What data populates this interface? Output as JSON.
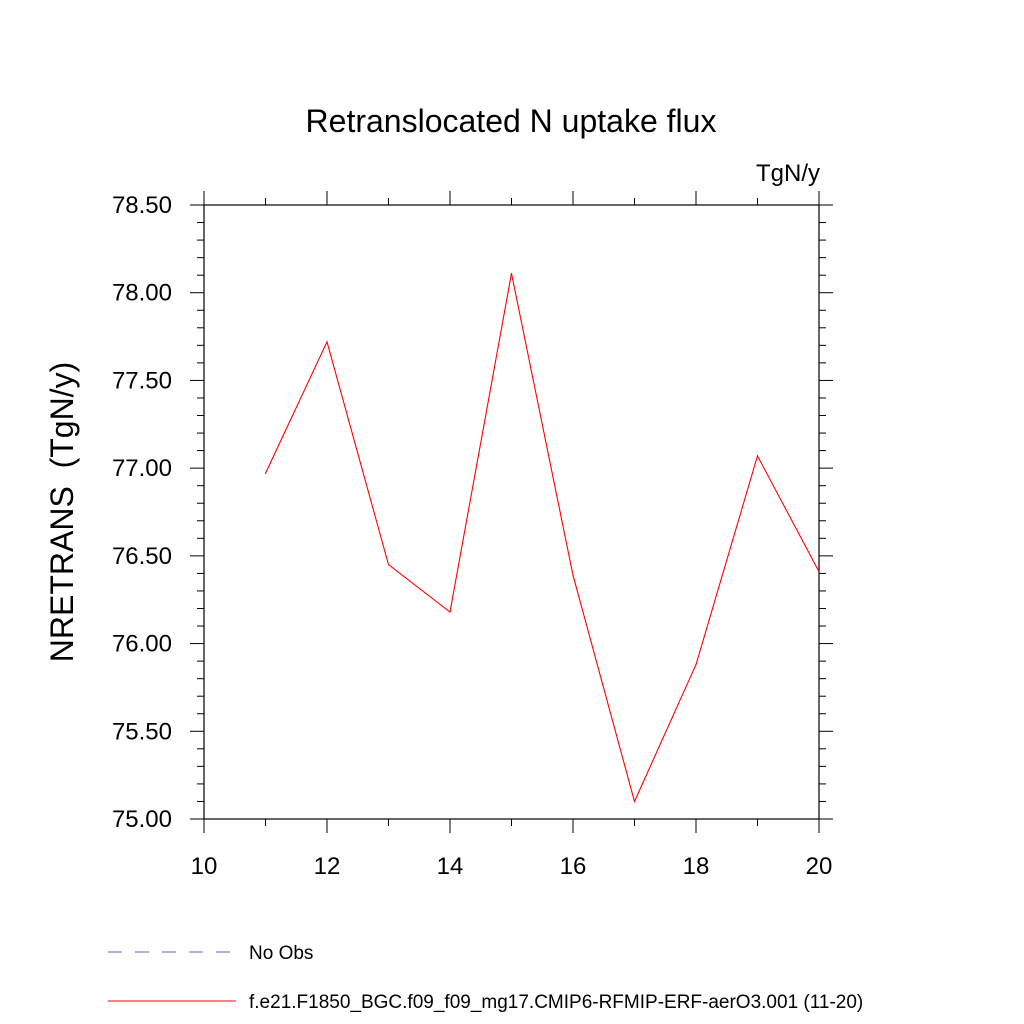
{
  "chart_data": {
    "type": "line",
    "title": "Retranslocated N uptake flux",
    "units_label": "TgN/y",
    "ylabel": "NRETRANS  (TgN/y)",
    "xlabel": "",
    "xlim": [
      10,
      20
    ],
    "ylim": [
      75.0,
      78.5
    ],
    "x_ticks": [
      10,
      12,
      14,
      16,
      18,
      20
    ],
    "x_tick_labels": [
      "10",
      "12",
      "14",
      "16",
      "18",
      "20"
    ],
    "y_ticks": [
      75.0,
      75.5,
      76.0,
      76.5,
      77.0,
      77.5,
      78.0,
      78.5
    ],
    "y_tick_labels": [
      "75.00",
      "75.50",
      "76.00",
      "76.50",
      "77.00",
      "77.50",
      "78.00",
      "78.50"
    ],
    "grid": false,
    "legend_position": "bottom",
    "series": [
      {
        "name": "f.e21.F1850_BGC.f09_f09_mg17.CMIP6-RFMIP-ERF-aerO3.001 (11-20)",
        "color": "#ff0000",
        "style": "solid",
        "x": [
          11,
          12,
          13,
          14,
          15,
          16,
          17,
          18,
          19,
          20
        ],
        "y": [
          76.97,
          77.72,
          76.45,
          76.18,
          78.11,
          76.39,
          75.1,
          75.88,
          77.07,
          76.41
        ]
      }
    ],
    "legend": [
      {
        "label": "No Obs",
        "color": "#6a5acd",
        "style": "dashed"
      },
      {
        "label": "f.e21.F1850_BGC.f09_f09_mg17.CMIP6-RFMIP-ERF-aerO3.001 (11-20)",
        "color": "#ff0000",
        "style": "solid"
      }
    ]
  }
}
